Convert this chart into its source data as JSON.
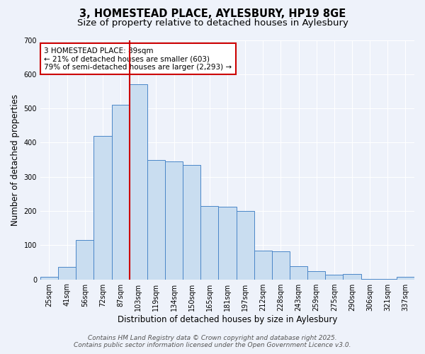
{
  "title_line1": "3, HOMESTEAD PLACE, AYLESBURY, HP19 8GE",
  "title_line2": "Size of property relative to detached houses in Aylesbury",
  "xlabel": "Distribution of detached houses by size in Aylesbury",
  "ylabel": "Number of detached properties",
  "categories": [
    "25sqm",
    "41sqm",
    "56sqm",
    "72sqm",
    "87sqm",
    "103sqm",
    "119sqm",
    "134sqm",
    "150sqm",
    "165sqm",
    "181sqm",
    "197sqm",
    "212sqm",
    "228sqm",
    "243sqm",
    "259sqm",
    "275sqm",
    "290sqm",
    "306sqm",
    "321sqm",
    "337sqm"
  ],
  "values": [
    8,
    37,
    115,
    420,
    510,
    570,
    350,
    345,
    335,
    215,
    213,
    200,
    83,
    82,
    38,
    25,
    13,
    15,
    2,
    2,
    8
  ],
  "bar_color": "#c9ddf0",
  "bar_edge_color": "#4a86c8",
  "vline_x_index": 4,
  "vline_color": "#cc0000",
  "annotation_text": "3 HOMESTEAD PLACE: 89sqm\n← 21% of detached houses are smaller (603)\n79% of semi-detached houses are larger (2,293) →",
  "annotation_box_color": "#ffffff",
  "annotation_border_color": "#cc0000",
  "ylim": [
    0,
    700
  ],
  "yticks": [
    0,
    100,
    200,
    300,
    400,
    500,
    600,
    700
  ],
  "background_color": "#eef2fa",
  "grid_color": "#ffffff",
  "footer_line1": "Contains HM Land Registry data © Crown copyright and database right 2025.",
  "footer_line2": "Contains public sector information licensed under the Open Government Licence v3.0.",
  "title_fontsize": 10.5,
  "subtitle_fontsize": 9.5,
  "axis_label_fontsize": 8.5,
  "tick_fontsize": 7,
  "annotation_fontsize": 7.5,
  "footer_fontsize": 6.5
}
